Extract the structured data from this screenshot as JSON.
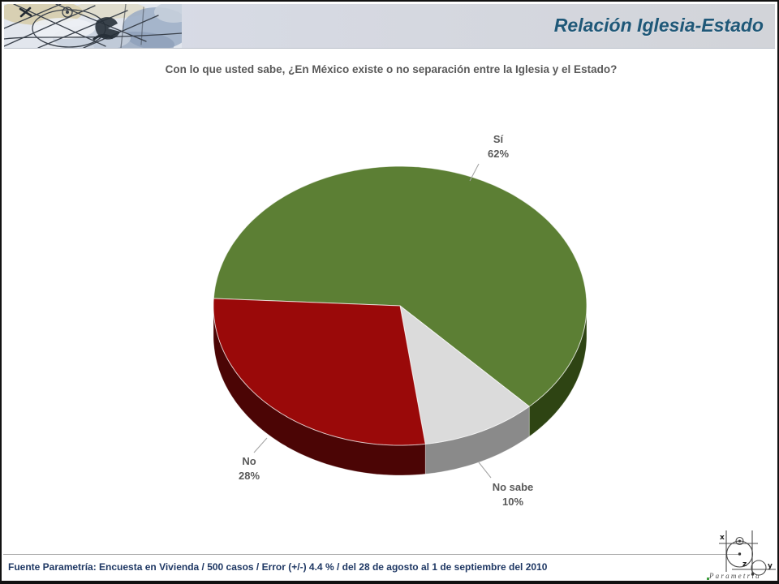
{
  "slide": {
    "header": {
      "title": "Relación Iglesia-Estado"
    },
    "footer": {
      "source": "Fuente Parametría: Encuesta en Vivienda / 500 casos / Error (+/-) 4.4 % / del 28 de agosto al 1 de septiembre del 2010",
      "logo": {
        "brand": "P a r a m e t r í a",
        "axis_x": "x",
        "axis_z": "z",
        "axis_y": "y",
        "accent_green": "#3e9e3e"
      }
    }
  },
  "chart_data": {
    "type": "pie",
    "style": "3d",
    "title": "Con lo que usted sabe, ¿En México existe o no separación entre la Iglesia y el Estado?",
    "legend": "none",
    "start_angle_deg": 183,
    "label_color": "#595959",
    "slices": [
      {
        "label": "Sí",
        "value": 62,
        "pct": "62%",
        "color": "#5c7f34",
        "side_color": "#2e4413"
      },
      {
        "label": "No sabe",
        "value": 10,
        "pct": "10%",
        "color": "#dbdbdb",
        "side_color": "#8a8a8a"
      },
      {
        "label": "No",
        "value": 28,
        "pct": "28%",
        "color": "#9a0909",
        "side_color": "#4b0505"
      }
    ]
  }
}
